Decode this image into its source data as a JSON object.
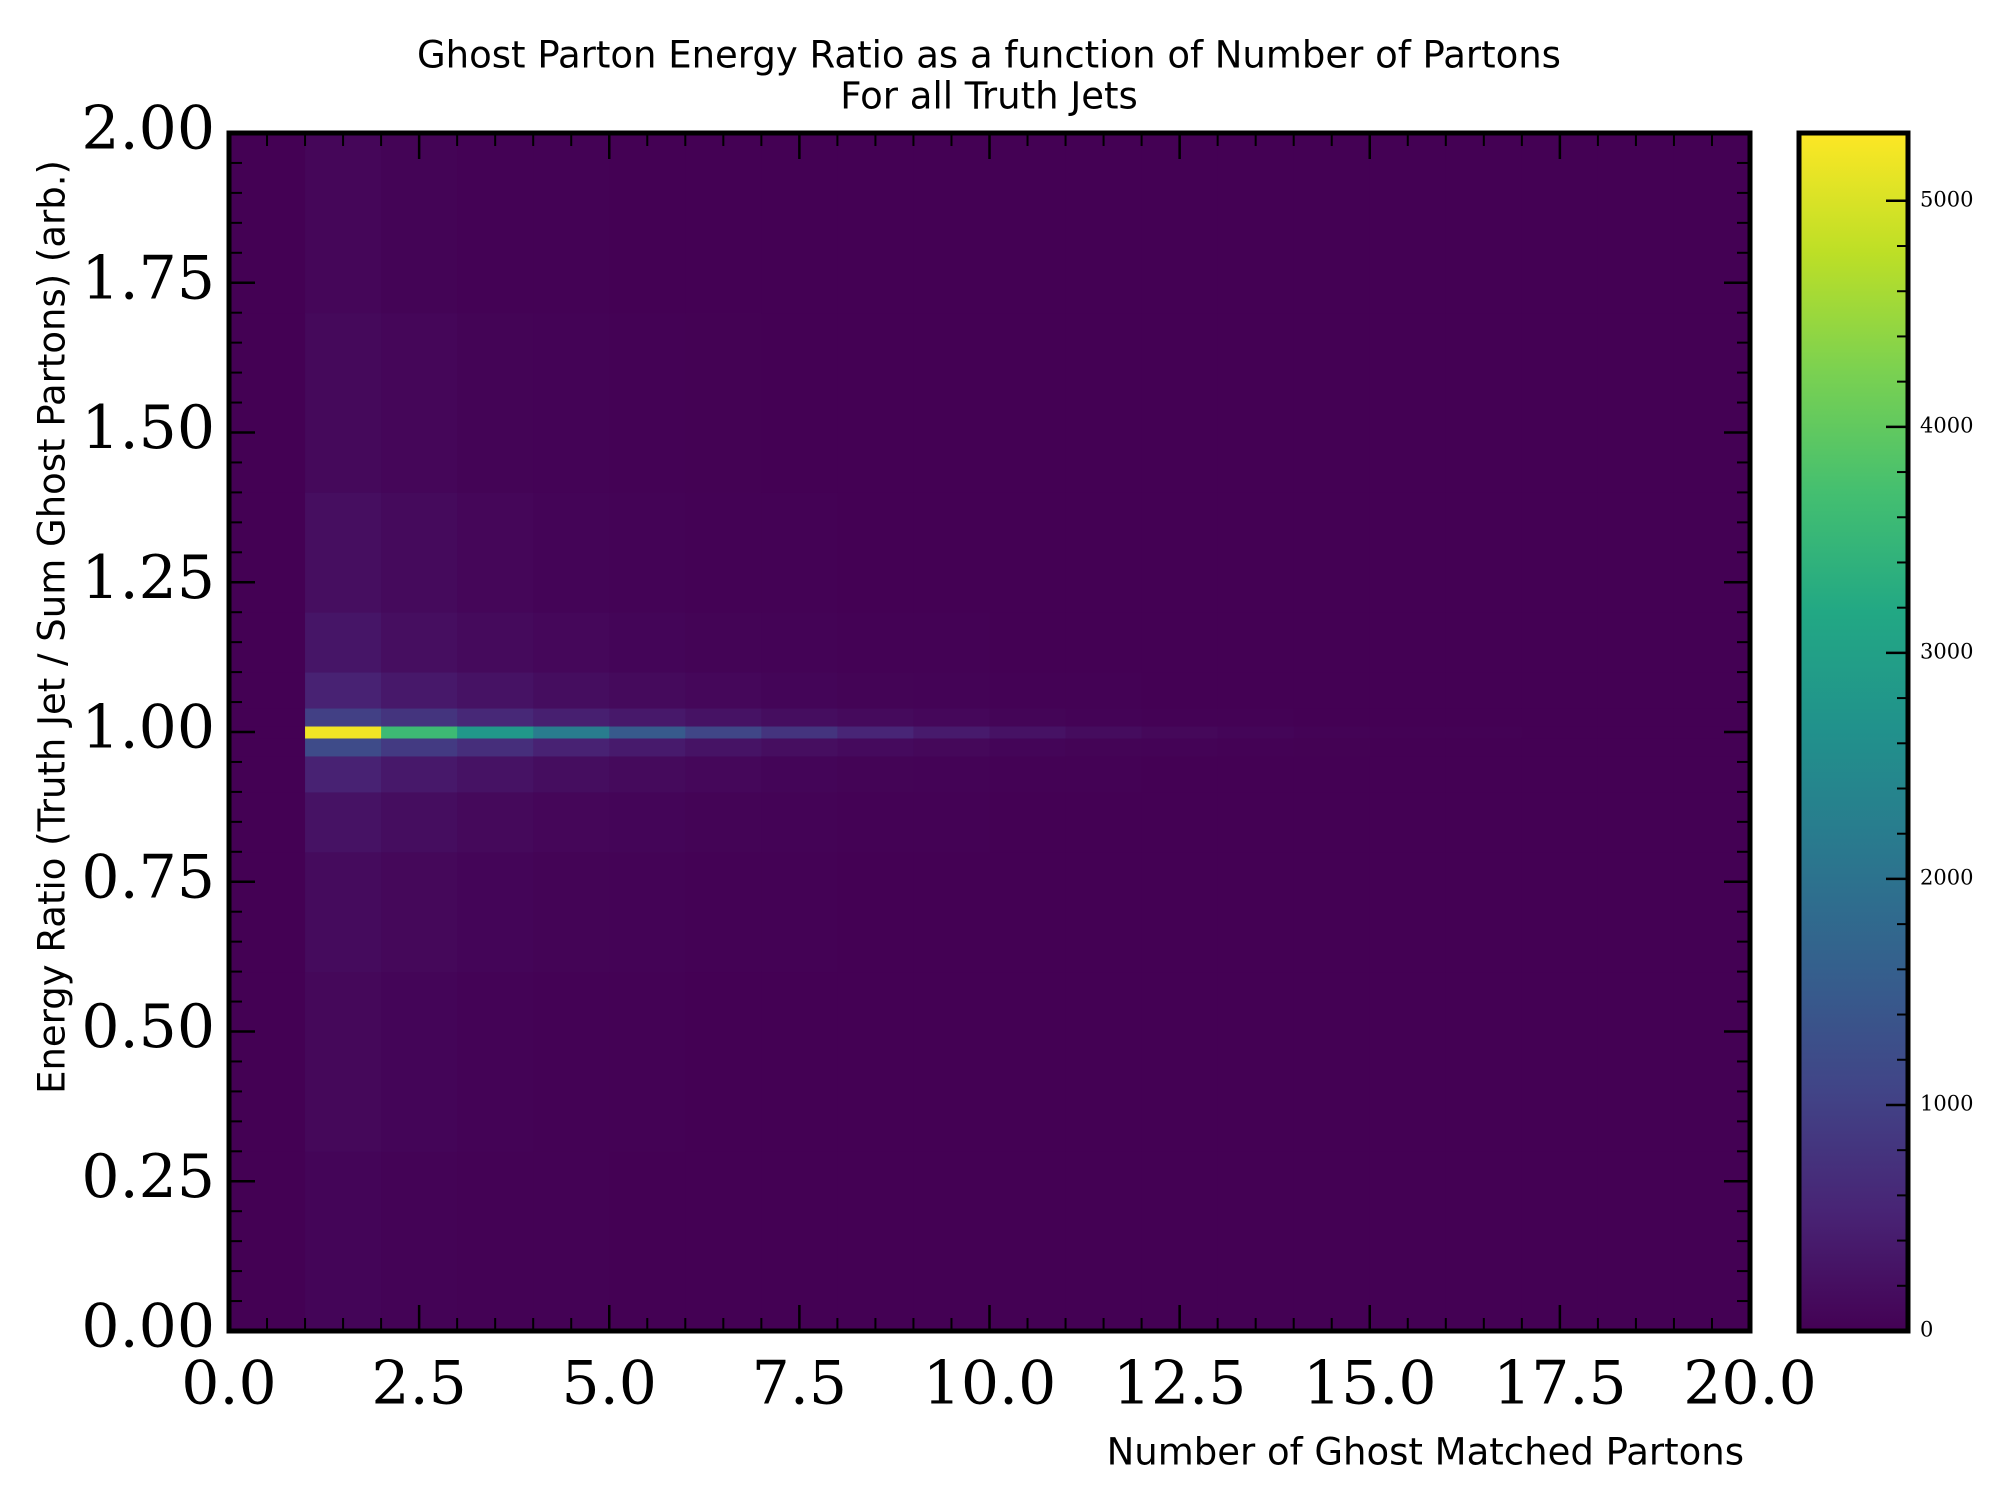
{
  "chart_data": {
    "type": "heatmap",
    "title": "Ghost Parton Energy Ratio as a function of Number of Partons",
    "subtitle": "For all Truth Jets",
    "x_label": "Number of Ghost Matched Partons",
    "y_label": "Energy Ratio (Truth Jet / Sum Ghost Partons) (arb.)",
    "colormap": "viridis",
    "xbins": [
      0,
      1,
      2,
      3,
      4,
      5,
      6,
      7,
      8,
      9,
      10,
      11,
      12,
      13,
      14,
      15,
      16,
      17,
      18,
      19,
      20
    ],
    "ybins": [
      0,
      0.3,
      0.6,
      0.8,
      0.9,
      0.96,
      0.99,
      1.01,
      1.04,
      1.1,
      1.2,
      1.4,
      1.7,
      2.0
    ],
    "z": [
      [
        0,
        0,
        0,
        0,
        0,
        0,
        0,
        0,
        0,
        0,
        0,
        0,
        0
      ],
      [
        60,
        100,
        150,
        250,
        500,
        1200,
        5200,
        1000,
        500,
        300,
        200,
        120,
        80
      ],
      [
        30,
        60,
        100,
        180,
        350,
        900,
        3600,
        800,
        350,
        200,
        130,
        80,
        40
      ],
      [
        15,
        30,
        60,
        120,
        250,
        700,
        2800,
        600,
        250,
        130,
        80,
        40,
        20
      ],
      [
        10,
        20,
        40,
        80,
        180,
        500,
        2200,
        450,
        180,
        90,
        50,
        25,
        10
      ],
      [
        5,
        10,
        25,
        60,
        130,
        380,
        1500,
        350,
        130,
        60,
        30,
        15,
        5
      ],
      [
        2,
        5,
        15,
        40,
        90,
        280,
        1100,
        260,
        90,
        40,
        20,
        8,
        3
      ],
      [
        1,
        3,
        10,
        25,
        60,
        200,
        800,
        180,
        60,
        25,
        10,
        4,
        1
      ],
      [
        0,
        1,
        5,
        15,
        40,
        140,
        550,
        130,
        40,
        15,
        5,
        2,
        0
      ],
      [
        0,
        1,
        3,
        10,
        25,
        100,
        380,
        90,
        25,
        10,
        3,
        1,
        0
      ],
      [
        0,
        0,
        1,
        5,
        15,
        60,
        250,
        55,
        15,
        5,
        1,
        0,
        0
      ],
      [
        0,
        0,
        1,
        3,
        10,
        40,
        160,
        35,
        10,
        3,
        1,
        0,
        0
      ],
      [
        0,
        0,
        0,
        2,
        6,
        25,
        100,
        22,
        6,
        2,
        0,
        0,
        0
      ],
      [
        0,
        0,
        0,
        1,
        3,
        15,
        60,
        12,
        3,
        1,
        0,
        0,
        0
      ],
      [
        0,
        0,
        0,
        0,
        2,
        8,
        35,
        7,
        2,
        0,
        0,
        0,
        0
      ],
      [
        0,
        0,
        0,
        0,
        1,
        5,
        20,
        4,
        1,
        0,
        0,
        0,
        0
      ],
      [
        0,
        0,
        0,
        0,
        0,
        3,
        10,
        2,
        0,
        0,
        0,
        0,
        0
      ],
      [
        0,
        0,
        0,
        0,
        0,
        1,
        6,
        1,
        0,
        0,
        0,
        0,
        0
      ],
      [
        0,
        0,
        0,
        0,
        0,
        0,
        3,
        0,
        0,
        0,
        0,
        0,
        0
      ],
      [
        0,
        0,
        0,
        0,
        0,
        0,
        1,
        0,
        0,
        0,
        0,
        0,
        0
      ]
    ],
    "xlim": [
      0,
      20
    ],
    "xticks": [
      {
        "value": 0,
        "label": "0.0"
      },
      {
        "value": 2.5,
        "label": "2.5"
      },
      {
        "value": 5,
        "label": "5.0"
      },
      {
        "value": 7.5,
        "label": "7.5"
      },
      {
        "value": 10,
        "label": "10.0"
      },
      {
        "value": 12.5,
        "label": "12.5"
      },
      {
        "value": 15,
        "label": "15.0"
      },
      {
        "value": 17.5,
        "label": "17.5"
      },
      {
        "value": 20,
        "label": "20.0"
      }
    ],
    "ylim": [
      0,
      2
    ],
    "yticks": [
      {
        "value": 0,
        "label": "0.00"
      },
      {
        "value": 0.25,
        "label": "0.25"
      },
      {
        "value": 0.5,
        "label": "0.50"
      },
      {
        "value": 0.75,
        "label": "0.75"
      },
      {
        "value": 1,
        "label": "1.00"
      },
      {
        "value": 1.25,
        "label": "1.25"
      },
      {
        "value": 1.5,
        "label": "1.50"
      },
      {
        "value": 1.75,
        "label": "1.75"
      },
      {
        "value": 2,
        "label": "2.00"
      }
    ],
    "clim": [
      0,
      5300
    ],
    "cticks": [
      0,
      1000,
      2000,
      3000,
      4000,
      5000
    ]
  }
}
